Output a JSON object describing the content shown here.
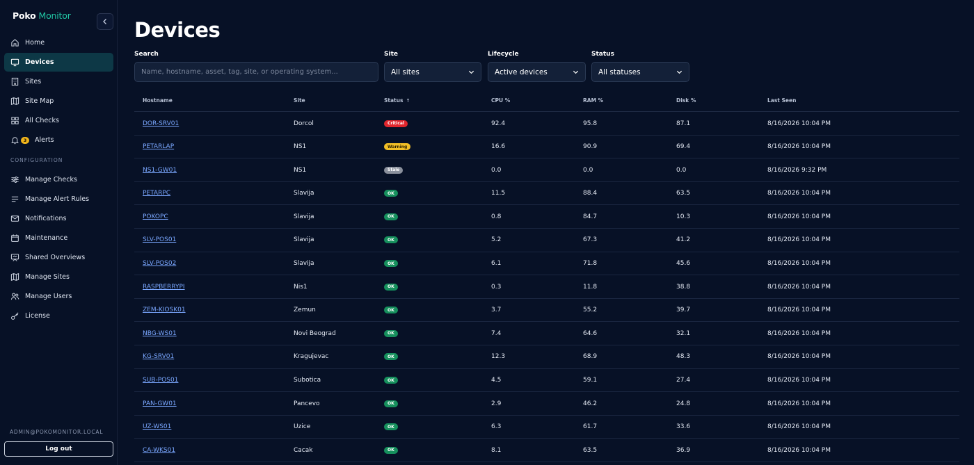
{
  "brand": {
    "part1": "Poko",
    "part2": "Monitor"
  },
  "sidebar": {
    "nav": [
      {
        "label": "Home",
        "icon": "home-icon",
        "active": false
      },
      {
        "label": "Devices",
        "icon": "monitor-icon",
        "active": true
      },
      {
        "label": "Sites",
        "icon": "building-icon",
        "active": false
      },
      {
        "label": "Site Map",
        "icon": "map-icon",
        "active": false
      },
      {
        "label": "All Checks",
        "icon": "grid-icon",
        "active": false
      },
      {
        "label": "Alerts",
        "icon": "bell-icon",
        "active": false,
        "badge": "3"
      }
    ],
    "section_label": "CONFIGURATION",
    "config": [
      {
        "label": "Manage Checks",
        "icon": "sliders-icon"
      },
      {
        "label": "Manage Alert Rules",
        "icon": "list-icon"
      },
      {
        "label": "Notifications",
        "icon": "mail-icon"
      },
      {
        "label": "Maintenance",
        "icon": "calendar-icon"
      },
      {
        "label": "Shared Overviews",
        "icon": "presentation-icon"
      },
      {
        "label": "Manage Sites",
        "icon": "map-icon"
      },
      {
        "label": "Manage Users",
        "icon": "users-icon"
      },
      {
        "label": "License",
        "icon": "key-icon"
      }
    ],
    "user_email": "ADMIN@POKOMONITOR.LOCAL",
    "logout_label": "Log out"
  },
  "page": {
    "title": "Devices"
  },
  "filters": {
    "search_label": "Search",
    "search_placeholder": "Name, hostname, asset, tag, site, or operating system...",
    "site_label": "Site",
    "site_value": "All sites",
    "lifecycle_label": "Lifecycle",
    "lifecycle_value": "Active devices",
    "status_label": "Status",
    "status_value": "All statuses"
  },
  "table": {
    "columns": [
      "Hostname",
      "Site",
      "Status",
      "CPU %",
      "RAM %",
      "Disk %",
      "Last Seen"
    ],
    "sort_indicator": "↑",
    "rows": [
      {
        "hostname": "DOR-SRV01",
        "site": "Dorcol",
        "status": "Critical",
        "status_key": "critical",
        "cpu": "92.4",
        "ram": "95.8",
        "disk": "87.1",
        "last_seen": "8/16/2026 10:04 PM"
      },
      {
        "hostname": "PETARLAP",
        "site": "NS1",
        "status": "Warning",
        "status_key": "warning",
        "cpu": "16.6",
        "ram": "90.9",
        "disk": "69.4",
        "last_seen": "8/16/2026 10:04 PM"
      },
      {
        "hostname": "NS1-GW01",
        "site": "NS1",
        "status": "Stale",
        "status_key": "stale",
        "cpu": "0.0",
        "ram": "0.0",
        "disk": "0.0",
        "last_seen": "8/16/2026 9:32 PM"
      },
      {
        "hostname": "PETARPC",
        "site": "Slavija",
        "status": "OK",
        "status_key": "ok",
        "cpu": "11.5",
        "ram": "88.4",
        "disk": "63.5",
        "last_seen": "8/16/2026 10:04 PM"
      },
      {
        "hostname": "POKOPC",
        "site": "Slavija",
        "status": "OK",
        "status_key": "ok",
        "cpu": "0.8",
        "ram": "84.7",
        "disk": "10.3",
        "last_seen": "8/16/2026 10:04 PM"
      },
      {
        "hostname": "SLV-POS01",
        "site": "Slavija",
        "status": "OK",
        "status_key": "ok",
        "cpu": "5.2",
        "ram": "67.3",
        "disk": "41.2",
        "last_seen": "8/16/2026 10:04 PM"
      },
      {
        "hostname": "SLV-POS02",
        "site": "Slavija",
        "status": "OK",
        "status_key": "ok",
        "cpu": "6.1",
        "ram": "71.8",
        "disk": "45.6",
        "last_seen": "8/16/2026 10:04 PM"
      },
      {
        "hostname": "RASPBERRYPI",
        "site": "Nis1",
        "status": "OK",
        "status_key": "ok",
        "cpu": "0.3",
        "ram": "11.8",
        "disk": "38.8",
        "last_seen": "8/16/2026 10:04 PM"
      },
      {
        "hostname": "ZEM-KIOSK01",
        "site": "Zemun",
        "status": "OK",
        "status_key": "ok",
        "cpu": "3.7",
        "ram": "55.2",
        "disk": "39.7",
        "last_seen": "8/16/2026 10:04 PM"
      },
      {
        "hostname": "NBG-WS01",
        "site": "Novi Beograd",
        "status": "OK",
        "status_key": "ok",
        "cpu": "7.4",
        "ram": "64.6",
        "disk": "32.1",
        "last_seen": "8/16/2026 10:04 PM"
      },
      {
        "hostname": "KG-SRV01",
        "site": "Kragujevac",
        "status": "OK",
        "status_key": "ok",
        "cpu": "12.3",
        "ram": "68.9",
        "disk": "48.3",
        "last_seen": "8/16/2026 10:04 PM"
      },
      {
        "hostname": "SUB-POS01",
        "site": "Subotica",
        "status": "OK",
        "status_key": "ok",
        "cpu": "4.5",
        "ram": "59.1",
        "disk": "27.4",
        "last_seen": "8/16/2026 10:04 PM"
      },
      {
        "hostname": "PAN-GW01",
        "site": "Pancevo",
        "status": "OK",
        "status_key": "ok",
        "cpu": "2.9",
        "ram": "46.2",
        "disk": "24.8",
        "last_seen": "8/16/2026 10:04 PM"
      },
      {
        "hostname": "UZ-WS01",
        "site": "Uzice",
        "status": "OK",
        "status_key": "ok",
        "cpu": "6.3",
        "ram": "61.7",
        "disk": "33.6",
        "last_seen": "8/16/2026 10:04 PM"
      },
      {
        "hostname": "CA-WKS01",
        "site": "Cacak",
        "status": "OK",
        "status_key": "ok",
        "cpu": "8.1",
        "ram": "63.5",
        "disk": "36.9",
        "last_seen": "8/16/2026 10:04 PM"
      }
    ]
  }
}
